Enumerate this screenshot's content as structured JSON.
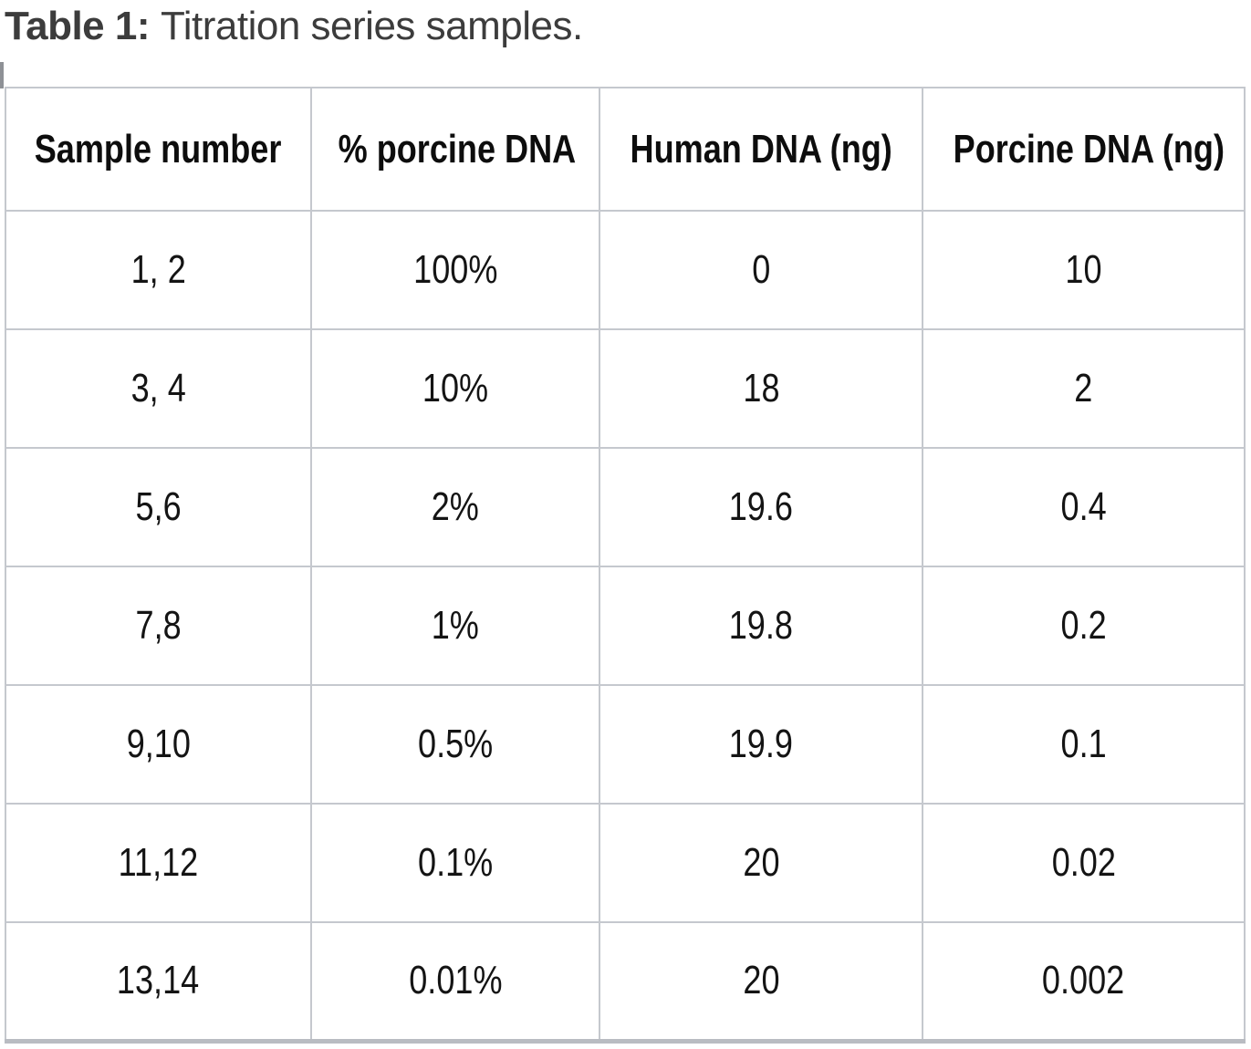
{
  "caption": {
    "label": "Table 1:",
    "text": "Titration series samples."
  },
  "table": {
    "columns": [
      "Sample number",
      "% porcine DNA",
      "Human DNA (ng)",
      "Porcine DNA (ng)"
    ],
    "rows": [
      [
        "1, 2",
        "100%",
        "0",
        "10"
      ],
      [
        "3, 4",
        "10%",
        "18",
        "2"
      ],
      [
        "5,6",
        "2%",
        "19.6",
        "0.4"
      ],
      [
        "7,8",
        "1%",
        "19.8",
        "0.2"
      ],
      [
        "9,10",
        "0.5%",
        "19.9",
        "0.1"
      ],
      [
        "11,12",
        "0.1%",
        "20",
        "0.02"
      ],
      [
        "13,14",
        "0.01%",
        "20",
        "0.002"
      ]
    ]
  },
  "colors": {
    "grid_line": "#c5c8ce",
    "grid_bottom": "#b9bcc2",
    "caption_text": "#3c3c3c",
    "cell_text": "#141414",
    "caret": "#8e9196",
    "background": "#ffffff"
  }
}
